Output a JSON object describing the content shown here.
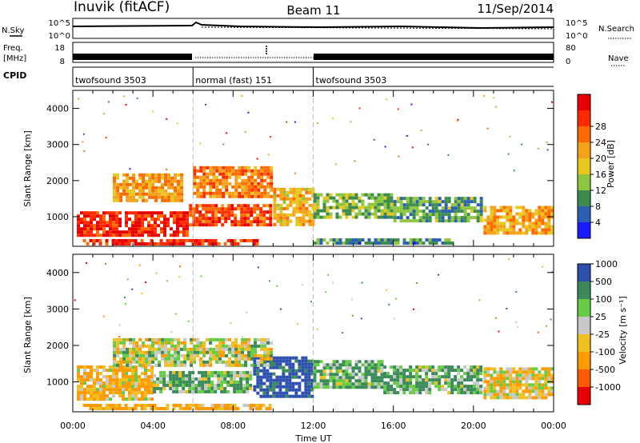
{
  "header": {
    "station": "Inuvik (fitACF)",
    "beam": "Beam 11",
    "date": "11/Sep/2014"
  },
  "panels": {
    "nsky_label": "N.Sky",
    "nsearch_label": "N.Search",
    "freq_label_1": "Freq.",
    "freq_label_2": "[MHz]",
    "nave_label": "Nave",
    "cpid_label": "CPID",
    "noise_ticks_left": [
      "10^5",
      "10^0"
    ],
    "noise_ticks_right": [
      "10^5",
      "10^0"
    ],
    "freq_ticks": [
      "18",
      "8"
    ],
    "nave_ticks": [
      "80",
      "0"
    ]
  },
  "cpid_segments": [
    {
      "start": 0,
      "end": 6,
      "label": "twofsound 3503"
    },
    {
      "start": 6,
      "end": 12,
      "label": "normal (fast) 151"
    },
    {
      "start": 12,
      "end": 24,
      "label": "twofsound 3503"
    }
  ],
  "axes": {
    "ylabel": "Slant Range [km]",
    "y_ticks": [
      1000,
      2000,
      3000,
      4000
    ],
    "y_range_km": [
      180,
      4500
    ],
    "x_range_hours": [
      0,
      24
    ],
    "x_ticks": [
      "00:00",
      "04:00",
      "08:00",
      "12:00",
      "16:00",
      "20:00",
      "00:00"
    ],
    "xlabel": "Time UT"
  },
  "colorbars": {
    "power": {
      "label": "Power [dB]",
      "colors": [
        "#1a1aff",
        "#2a5fb3",
        "#3c8c50",
        "#8ec63f",
        "#e8c81e",
        "#f5a21a",
        "#ff6a00",
        "#ff2a00",
        "#e80000"
      ],
      "ticks": [
        "4",
        "8",
        "12",
        "16",
        "20",
        "24",
        "28"
      ]
    },
    "velocity": {
      "label": "Velocity [m s⁻¹]",
      "colors": [
        "#e80000",
        "#ff5a00",
        "#ff9a00",
        "#f0bf20",
        "#c8c8c8",
        "#66cc44",
        "#3a8a5a",
        "#2d4fb0"
      ],
      "ticks": [
        "-1000",
        "-500",
        "-100",
        "-25",
        "25",
        "100",
        "500",
        "1000"
      ]
    }
  },
  "chart_data": [
    {
      "type": "heatmap",
      "name": "power",
      "x_units": "hours UT",
      "y_units": "km",
      "value_units": "dB",
      "regions": [
        {
          "t0": 0.2,
          "t1": 5.8,
          "r0": 420,
          "r1": 1150,
          "value": 28
        },
        {
          "t0": 5.8,
          "t1": 10.0,
          "r0": 700,
          "r1": 1350,
          "value": 26
        },
        {
          "t0": 2.0,
          "t1": 5.5,
          "r0": 1400,
          "r1": 2200,
          "value": 20
        },
        {
          "t0": 6.0,
          "t1": 10.0,
          "r0": 1500,
          "r1": 2400,
          "value": 22
        },
        {
          "t0": 10.0,
          "t1": 12.0,
          "r0": 700,
          "r1": 1800,
          "value": 18
        },
        {
          "t0": 12.0,
          "t1": 16.0,
          "r0": 900,
          "r1": 1650,
          "value": 12
        },
        {
          "t0": 16.0,
          "t1": 20.5,
          "r0": 800,
          "r1": 1550,
          "value": 10
        },
        {
          "t0": 20.5,
          "t1": 24.0,
          "r0": 500,
          "r1": 1300,
          "value": 20
        },
        {
          "t0": 0.5,
          "t1": 9.5,
          "r0": 200,
          "r1": 380,
          "value": 28
        },
        {
          "t0": 12.0,
          "t1": 19.0,
          "r0": 200,
          "r1": 400,
          "value": 8
        }
      ]
    },
    {
      "type": "heatmap",
      "name": "velocity",
      "x_units": "hours UT",
      "y_units": "km",
      "value_units": "m s^-1",
      "regions": [
        {
          "t0": 0.2,
          "t1": 4.0,
          "r0": 500,
          "r1": 1450,
          "value": -100
        },
        {
          "t0": 4.0,
          "t1": 9.0,
          "r0": 700,
          "r1": 1300,
          "value": 100
        },
        {
          "t0": 9.0,
          "t1": 12.0,
          "r0": 600,
          "r1": 1700,
          "value": 600
        },
        {
          "t0": 12.0,
          "t1": 15.5,
          "r0": 800,
          "r1": 1600,
          "value": 100
        },
        {
          "t0": 15.5,
          "t1": 20.5,
          "r0": 700,
          "r1": 1450,
          "value": 100
        },
        {
          "t0": 20.5,
          "t1": 24.0,
          "r0": 500,
          "r1": 1400,
          "value": -50
        },
        {
          "t0": 2.0,
          "t1": 10.0,
          "r0": 1450,
          "r1": 2200,
          "value": 0
        },
        {
          "t0": 0.5,
          "t1": 10.0,
          "r0": 200,
          "r1": 400,
          "value": -150
        }
      ]
    }
  ]
}
